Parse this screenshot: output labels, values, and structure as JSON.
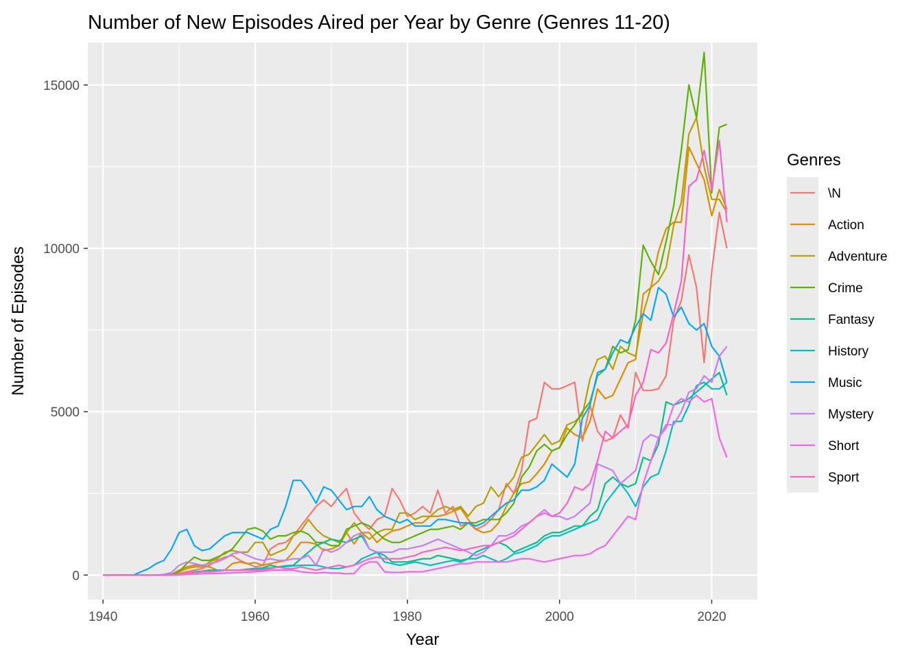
{
  "chart_data": {
    "type": "line",
    "title": "Number of New Episodes Aired per Year by Genre (Genres 11-20)",
    "xlabel": "Year",
    "ylabel": "Number of Episodes",
    "xlim": [
      1938,
      2026
    ],
    "ylim": [
      -750,
      16300
    ],
    "x_ticks": [
      1940,
      1960,
      1980,
      2000,
      2020
    ],
    "y_ticks": [
      0,
      5000,
      10000,
      15000
    ],
    "grid": true,
    "legend": {
      "title": "Genres",
      "placement": "right"
    },
    "x": [
      1940,
      1941,
      1942,
      1943,
      1944,
      1945,
      1946,
      1947,
      1948,
      1949,
      1950,
      1951,
      1952,
      1953,
      1954,
      1955,
      1956,
      1957,
      1958,
      1959,
      1960,
      1961,
      1962,
      1963,
      1964,
      1965,
      1966,
      1967,
      1968,
      1969,
      1970,
      1971,
      1972,
      1973,
      1974,
      1975,
      1976,
      1977,
      1978,
      1979,
      1980,
      1981,
      1982,
      1983,
      1984,
      1985,
      1986,
      1987,
      1988,
      1989,
      1990,
      1991,
      1992,
      1993,
      1994,
      1995,
      1996,
      1997,
      1998,
      1999,
      2000,
      2001,
      2002,
      2003,
      2004,
      2005,
      2006,
      2007,
      2008,
      2009,
      2010,
      2011,
      2012,
      2013,
      2014,
      2015,
      2016,
      2017,
      2018,
      2019,
      2020,
      2021,
      2022
    ],
    "series": [
      {
        "name": "\\N",
        "color": "#F8766D",
        "values": [
          0,
          0,
          0,
          0,
          0,
          0,
          0,
          0,
          5,
          10,
          50,
          100,
          150,
          200,
          300,
          450,
          550,
          600,
          450,
          350,
          250,
          300,
          800,
          950,
          1000,
          1200,
          1500,
          1800,
          2100,
          2300,
          2100,
          2400,
          2650,
          1900,
          1600,
          1400,
          1700,
          1800,
          2650,
          2300,
          1800,
          1900,
          2100,
          1900,
          2600,
          1900,
          2100,
          1500,
          1600,
          1400,
          1500,
          1700,
          2000,
          2800,
          2500,
          3200,
          4700,
          4800,
          5900,
          5700,
          5700,
          5800,
          5900,
          4100,
          5200,
          4400,
          4100,
          4200,
          4900,
          4500,
          6200,
          5650,
          5650,
          5700,
          6100,
          7800,
          8400,
          9800,
          8800,
          6500,
          9300,
          11100,
          10000
        ]
      },
      {
        "name": "Action",
        "color": "#DE8C00",
        "values": [
          0,
          0,
          0,
          0,
          0,
          0,
          0,
          0,
          5,
          20,
          150,
          250,
          300,
          300,
          250,
          150,
          150,
          350,
          400,
          350,
          380,
          300,
          350,
          400,
          450,
          700,
          1000,
          1000,
          950,
          750,
          800,
          900,
          1300,
          950,
          1300,
          1300,
          1000,
          1200,
          1350,
          1400,
          1500,
          1600,
          1600,
          1800,
          1800,
          1850,
          1950,
          2050,
          1700,
          1400,
          1300,
          1350,
          1600,
          2100,
          2500,
          2800,
          2850,
          3100,
          3400,
          3800,
          3900,
          4500,
          4300,
          4200,
          4700,
          5700,
          5400,
          5500,
          6000,
          6500,
          6600,
          8600,
          8800,
          9900,
          10600,
          10800,
          10800,
          13100,
          12600,
          12100,
          11000,
          11800,
          11200
        ]
      },
      {
        "name": "Adventure",
        "color": "#B79F00",
        "values": [
          0,
          0,
          0,
          0,
          0,
          0,
          0,
          0,
          10,
          20,
          100,
          200,
          250,
          250,
          400,
          500,
          700,
          750,
          700,
          700,
          1000,
          1000,
          600,
          700,
          800,
          1200,
          1350,
          1700,
          1400,
          1200,
          1100,
          1000,
          1300,
          1600,
          1300,
          1100,
          1300,
          1400,
          1400,
          1900,
          1900,
          1700,
          1800,
          1800,
          2000,
          2100,
          2000,
          2100,
          1800,
          2100,
          2200,
          2700,
          2400,
          2700,
          3000,
          3600,
          3700,
          4000,
          4300,
          4000,
          4100,
          4600,
          4700,
          4900,
          6000,
          6600,
          6700,
          6300,
          7000,
          6800,
          6700,
          8000,
          8800,
          9000,
          9400,
          10700,
          11400,
          13500,
          14000,
          12500,
          11500,
          11500,
          11100
        ]
      },
      {
        "name": "Crime",
        "color": "#5BB300",
        "values": [
          0,
          0,
          0,
          0,
          0,
          0,
          0,
          0,
          10,
          20,
          100,
          350,
          550,
          450,
          450,
          550,
          650,
          800,
          1100,
          1400,
          1450,
          1350,
          1100,
          1200,
          1200,
          1300,
          1350,
          1250,
          1000,
          1000,
          900,
          900,
          1400,
          1500,
          1600,
          1500,
          1300,
          1100,
          1000,
          1000,
          1100,
          1200,
          1300,
          1400,
          1400,
          1450,
          1500,
          1400,
          1600,
          1600,
          1700,
          1700,
          1700,
          1900,
          2200,
          3000,
          3300,
          3800,
          4000,
          3800,
          3900,
          4300,
          4600,
          5000,
          5300,
          6100,
          6300,
          7000,
          6800,
          6900,
          7800,
          10100,
          9600,
          9200,
          10200,
          11300,
          13000,
          15000,
          14000,
          16000,
          11700,
          13700,
          13800
        ]
      },
      {
        "name": "Fantasy",
        "color": "#00C08B",
        "values": [
          0,
          0,
          0,
          0,
          0,
          0,
          0,
          0,
          0,
          10,
          20,
          50,
          100,
          120,
          150,
          150,
          150,
          150,
          150,
          180,
          200,
          220,
          300,
          250,
          280,
          300,
          500,
          700,
          900,
          1000,
          1100,
          1050,
          1000,
          1100,
          1200,
          800,
          700,
          600,
          400,
          400,
          400,
          450,
          500,
          500,
          600,
          550,
          500,
          450,
          500,
          700,
          800,
          900,
          1000,
          900,
          700,
          800,
          900,
          1000,
          1200,
          1300,
          1300,
          1400,
          1500,
          1500,
          1800,
          2000,
          2800,
          3000,
          2800,
          2700,
          2800,
          3600,
          3500,
          4000,
          5300,
          5200,
          5300,
          5400,
          5600,
          5800,
          6000,
          6200,
          5500
        ]
      },
      {
        "name": "History",
        "color": "#00BFC4",
        "values": [
          0,
          0,
          0,
          0,
          0,
          0,
          0,
          0,
          0,
          10,
          20,
          50,
          80,
          100,
          120,
          150,
          150,
          150,
          150,
          180,
          200,
          200,
          220,
          240,
          260,
          280,
          300,
          300,
          300,
          250,
          200,
          200,
          250,
          300,
          500,
          600,
          700,
          400,
          350,
          300,
          350,
          400,
          350,
          300,
          350,
          400,
          450,
          400,
          500,
          500,
          600,
          500,
          400,
          500,
          650,
          700,
          800,
          900,
          1100,
          1200,
          1200,
          1300,
          1400,
          1500,
          1600,
          1700,
          2200,
          2500,
          2800,
          2500,
          2100,
          2700,
          3000,
          3100,
          3800,
          4700,
          4700,
          5200,
          5800,
          5900,
          5700,
          5700,
          5900
        ]
      },
      {
        "name": "Music",
        "color": "#00A9FF",
        "values": [
          0,
          0,
          0,
          0,
          0,
          100,
          200,
          350,
          450,
          800,
          1300,
          1400,
          900,
          750,
          800,
          1000,
          1200,
          1300,
          1300,
          1300,
          1200,
          1100,
          1400,
          1500,
          2100,
          2900,
          2900,
          2600,
          2200,
          2700,
          2600,
          2300,
          2000,
          2100,
          2100,
          2400,
          2000,
          1800,
          1700,
          1600,
          1700,
          1500,
          1500,
          1500,
          1700,
          1700,
          1650,
          1600,
          1600,
          1500,
          1600,
          1800,
          2000,
          2200,
          2300,
          2600,
          2600,
          2700,
          2900,
          3400,
          3200,
          3000,
          3400,
          4800,
          5200,
          6200,
          6300,
          6800,
          7200,
          7100,
          7600,
          8000,
          7800,
          8800,
          8600,
          7900,
          8200,
          7700,
          7500,
          7700,
          7000,
          6700,
          5900
        ]
      },
      {
        "name": "Mystery",
        "color": "#C77CFF",
        "values": [
          0,
          0,
          0,
          0,
          0,
          0,
          0,
          0,
          20,
          80,
          300,
          400,
          350,
          300,
          350,
          400,
          500,
          650,
          700,
          600,
          500,
          450,
          500,
          450,
          450,
          500,
          500,
          600,
          300,
          800,
          700,
          800,
          1000,
          1200,
          1300,
          800,
          700,
          700,
          700,
          800,
          800,
          850,
          900,
          1000,
          1100,
          1000,
          900,
          800,
          700,
          600,
          700,
          900,
          1200,
          1200,
          1300,
          1500,
          1600,
          1800,
          2000,
          1800,
          1800,
          1700,
          1800,
          2000,
          2200,
          3400,
          3300,
          3200,
          2800,
          3000,
          3200,
          4100,
          4300,
          4200,
          4600,
          4600,
          5000,
          5600,
          5700,
          6100,
          5900,
          6700,
          7000
        ]
      },
      {
        "name": "Short",
        "color": "#ED68ED",
        "values": [
          0,
          0,
          0,
          0,
          0,
          0,
          0,
          0,
          0,
          0,
          10,
          20,
          30,
          40,
          50,
          50,
          60,
          70,
          80,
          90,
          100,
          120,
          150,
          150,
          150,
          150,
          100,
          80,
          60,
          80,
          60,
          60,
          40,
          50,
          300,
          400,
          400,
          100,
          80,
          80,
          100,
          100,
          100,
          150,
          200,
          250,
          300,
          350,
          350,
          400,
          400,
          400,
          400,
          400,
          450,
          500,
          500,
          450,
          400,
          450,
          500,
          550,
          600,
          600,
          650,
          800,
          900,
          1200,
          1500,
          1800,
          1700,
          2800,
          3500,
          4200,
          4500,
          5200,
          5400,
          5300,
          5500,
          5300,
          5400,
          4200,
          3600
        ]
      },
      {
        "name": "Sport",
        "color": "#FF61C3",
        "values": [
          0,
          0,
          0,
          0,
          0,
          0,
          0,
          0,
          0,
          10,
          30,
          60,
          80,
          100,
          100,
          120,
          150,
          150,
          150,
          150,
          150,
          150,
          200,
          250,
          200,
          200,
          250,
          200,
          150,
          200,
          250,
          300,
          250,
          300,
          400,
          500,
          550,
          500,
          500,
          500,
          550,
          600,
          700,
          750,
          800,
          850,
          800,
          750,
          800,
          850,
          900,
          900,
          1000,
          1100,
          1200,
          1400,
          1600,
          1800,
          1900,
          1800,
          1900,
          2200,
          2700,
          2600,
          2800,
          3500,
          4400,
          4200,
          4400,
          4600,
          5500,
          5900,
          6900,
          6800,
          7100,
          8000,
          9000,
          11900,
          12100,
          13000,
          11800,
          13300,
          10800
        ]
      }
    ]
  }
}
